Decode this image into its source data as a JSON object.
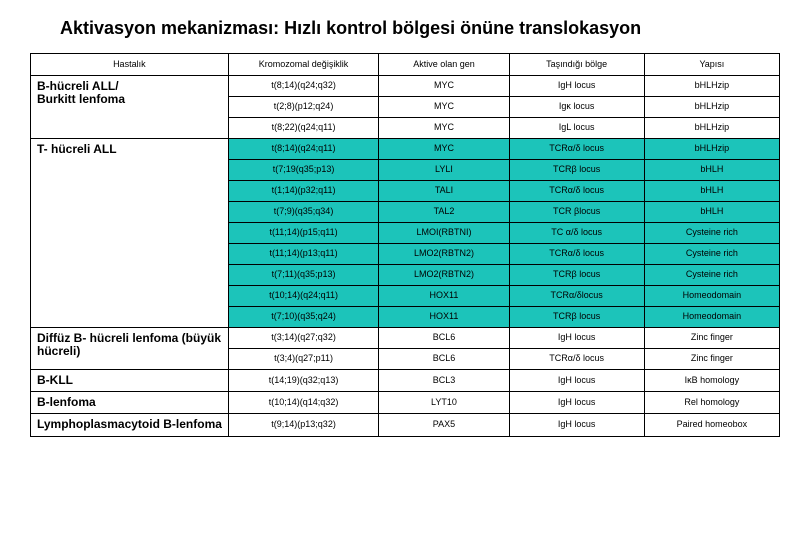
{
  "title": "Aktivasyon mekanizması: Hızlı kontrol bölgesi önüne translokasyon",
  "headers": {
    "c1": "Hastalık",
    "c2": "Kromozomal değişiklik",
    "c3": "Aktive olan gen",
    "c4": "Taşındığı bölge",
    "c5": "Yapısı"
  },
  "groups": [
    {
      "disease": "B-hücreli ALL/<br>Burkitt lenfoma",
      "color": "white",
      "rows": [
        {
          "c2": "t(8;14)(q24;q32)",
          "c3": "MYC",
          "c4": "IgH locus",
          "c5": "bHLHzip"
        },
        {
          "c2": "t(2;8)(p12;q24)",
          "c3": "MYC",
          "c4": "Igκ locus",
          "c5": "bHLHzip"
        },
        {
          "c2": "t(8;22)(q24;q11)",
          "c3": "MYC",
          "c4": "IgL locus",
          "c5": "bHLHzip"
        }
      ]
    },
    {
      "disease": "T- hücreli ALL",
      "color": "teal",
      "rows": [
        {
          "c2": "t(8;14)(q24;q11)",
          "c3": "MYC",
          "c4": "TCRα/δ locus",
          "c5": "bHLHzip"
        },
        {
          "c2": "t(7;19(q35;p13)",
          "c3": "LYLI",
          "c4": "TCRβ locus",
          "c5": "bHLH"
        },
        {
          "c2": "t(1;14)(p32;q11)",
          "c3": "TALI",
          "c4": "TCRα/δ locus",
          "c5": "bHLH"
        },
        {
          "c2": "t(7;9)(q35;q34)",
          "c3": "TAL2",
          "c4": "TCR βlocus",
          "c5": "bHLH"
        },
        {
          "c2": "t(11;14)(p15;q11)",
          "c3": "LMOI(RBTNI)",
          "c4": "TC α/δ locus",
          "c5": "Cysteine rich"
        },
        {
          "c2": "t(11;14)(p13;q11)",
          "c3": "LMO2(RBTN2)",
          "c4": "TCRα/δ locus",
          "c5": "Cysteine rich"
        },
        {
          "c2": "t(7;11)(q35;p13)",
          "c3": "LMO2(RBTN2)",
          "c4": "TCRβ locus",
          "c5": "Cysteine rich"
        },
        {
          "c2": "t(10;14)(q24;q11)",
          "c3": "HOX11",
          "c4": "TCRα/δlocus",
          "c5": "Homeodomain"
        },
        {
          "c2": "t(7;10)(q35;q24)",
          "c3": "HOX11",
          "c4": "TCRβ locus",
          "c5": "Homeodomain"
        }
      ]
    },
    {
      "disease": "Diffüz B- hücreli lenfoma (büyük hücreli)",
      "color": "white",
      "rows": [
        {
          "c2": "t(3;14)(q27;q32)",
          "c3": "BCL6",
          "c4": "IgH locus",
          "c5": "Zinc finger"
        },
        {
          "c2": "t(3;4)(q27;p11)",
          "c3": "BCL6",
          "c4": "TCRα/δ locus",
          "c5": "Zinc finger"
        }
      ]
    },
    {
      "disease": "B-KLL",
      "color": "white",
      "rows": [
        {
          "c2": "t(14;19)(q32;q13)",
          "c3": "BCL3",
          "c4": "IgH locus",
          "c5": "IκB homology"
        }
      ]
    },
    {
      "disease": "B-lenfoma",
      "color": "white",
      "rows": [
        {
          "c2": "t(10;14)(q14;q32)",
          "c3": "LYT10",
          "c4": "IgH locus",
          "c5": "Rel homology"
        }
      ]
    },
    {
      "disease": "Lymphoplasmacytoid B-lenfoma",
      "color": "white",
      "rows": [
        {
          "c2": "t(9;14)(p13;q32)",
          "c3": "PAX5",
          "c4": "IgH locus",
          "c5": "Paired homeobox"
        }
      ]
    }
  ]
}
